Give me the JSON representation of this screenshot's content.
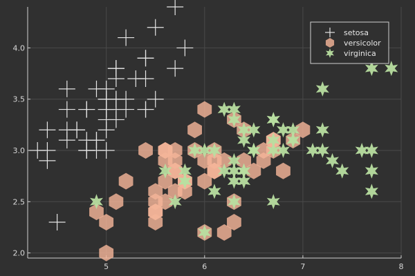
{
  "colors": {
    "background": "#303030",
    "grid": "#4a4a4a",
    "axis": "#d0d0d0",
    "setosa": "#e6e6e6",
    "versicolor": "#f4b599",
    "virginica": "#b8dea0"
  },
  "chart_data": {
    "type": "scatter",
    "title": "",
    "xlabel": "",
    "ylabel": "",
    "xlim": [
      4.2,
      8.0
    ],
    "ylim": [
      1.95,
      4.4
    ],
    "xticks": [
      "5",
      "6",
      "7",
      "8"
    ],
    "yticks": [
      "2.0",
      "2.5",
      "3.0",
      "3.5",
      "4.0"
    ],
    "grid": true,
    "legend_position": "top-right",
    "series": [
      {
        "name": "setosa",
        "marker": "cross",
        "points": [
          [
            5.1,
            3.5
          ],
          [
            4.9,
            3.0
          ],
          [
            4.7,
            3.2
          ],
          [
            4.6,
            3.1
          ],
          [
            5.0,
            3.6
          ],
          [
            5.4,
            3.9
          ],
          [
            4.6,
            3.4
          ],
          [
            5.0,
            3.4
          ],
          [
            4.4,
            2.9
          ],
          [
            4.9,
            3.1
          ],
          [
            5.4,
            3.7
          ],
          [
            4.8,
            3.4
          ],
          [
            4.8,
            3.0
          ],
          [
            4.3,
            3.0
          ],
          [
            5.8,
            4.0
          ],
          [
            5.7,
            4.4
          ],
          [
            5.4,
            3.9
          ],
          [
            5.1,
            3.5
          ],
          [
            5.7,
            3.8
          ],
          [
            5.1,
            3.8
          ],
          [
            5.4,
            3.4
          ],
          [
            5.1,
            3.7
          ],
          [
            4.6,
            3.6
          ],
          [
            5.1,
            3.3
          ],
          [
            4.8,
            3.4
          ],
          [
            5.0,
            3.0
          ],
          [
            5.0,
            3.4
          ],
          [
            5.2,
            3.5
          ],
          [
            5.2,
            3.4
          ],
          [
            4.7,
            3.2
          ],
          [
            4.8,
            3.1
          ],
          [
            5.4,
            3.4
          ],
          [
            5.2,
            4.1
          ],
          [
            5.5,
            4.2
          ],
          [
            4.9,
            3.1
          ],
          [
            5.0,
            3.2
          ],
          [
            5.5,
            3.5
          ],
          [
            4.9,
            3.6
          ],
          [
            4.4,
            3.0
          ],
          [
            5.1,
            3.4
          ],
          [
            5.0,
            3.5
          ],
          [
            4.5,
            2.3
          ],
          [
            4.4,
            3.2
          ],
          [
            5.0,
            3.5
          ],
          [
            5.1,
            3.8
          ],
          [
            4.8,
            3.0
          ],
          [
            5.1,
            3.8
          ],
          [
            4.6,
            3.2
          ],
          [
            5.3,
            3.7
          ],
          [
            5.0,
            3.3
          ]
        ]
      },
      {
        "name": "versicolor",
        "marker": "hexagon",
        "points": [
          [
            7.0,
            3.2
          ],
          [
            6.4,
            3.2
          ],
          [
            6.9,
            3.1
          ],
          [
            5.5,
            2.3
          ],
          [
            6.5,
            2.8
          ],
          [
            5.7,
            2.8
          ],
          [
            6.3,
            3.3
          ],
          [
            4.9,
            2.4
          ],
          [
            6.6,
            2.9
          ],
          [
            5.2,
            2.7
          ],
          [
            5.0,
            2.0
          ],
          [
            5.9,
            3.0
          ],
          [
            6.0,
            2.2
          ],
          [
            6.1,
            2.9
          ],
          [
            5.6,
            2.9
          ],
          [
            6.7,
            3.1
          ],
          [
            5.6,
            3.0
          ],
          [
            5.8,
            2.7
          ],
          [
            6.2,
            2.2
          ],
          [
            5.6,
            2.5
          ],
          [
            5.9,
            3.2
          ],
          [
            6.1,
            2.8
          ],
          [
            6.3,
            2.5
          ],
          [
            6.1,
            2.8
          ],
          [
            6.4,
            2.9
          ],
          [
            6.6,
            3.0
          ],
          [
            6.8,
            2.8
          ],
          [
            6.7,
            3.0
          ],
          [
            6.0,
            2.9
          ],
          [
            5.7,
            2.6
          ],
          [
            5.5,
            2.4
          ],
          [
            5.5,
            2.4
          ],
          [
            5.8,
            2.7
          ],
          [
            6.0,
            2.7
          ],
          [
            5.4,
            3.0
          ],
          [
            6.0,
            3.4
          ],
          [
            6.7,
            3.1
          ],
          [
            6.3,
            2.3
          ],
          [
            5.6,
            3.0
          ],
          [
            5.5,
            2.5
          ],
          [
            5.5,
            2.6
          ],
          [
            6.1,
            3.0
          ],
          [
            5.8,
            2.6
          ],
          [
            5.0,
            2.3
          ],
          [
            5.6,
            2.7
          ],
          [
            5.7,
            3.0
          ],
          [
            5.7,
            2.9
          ],
          [
            6.2,
            2.9
          ],
          [
            5.1,
            2.5
          ],
          [
            5.7,
            2.8
          ]
        ]
      },
      {
        "name": "virginica",
        "marker": "star",
        "points": [
          [
            6.3,
            3.3
          ],
          [
            5.8,
            2.7
          ],
          [
            7.1,
            3.0
          ],
          [
            6.3,
            2.9
          ],
          [
            6.5,
            3.0
          ],
          [
            7.6,
            3.0
          ],
          [
            4.9,
            2.5
          ],
          [
            7.3,
            2.9
          ],
          [
            6.7,
            2.5
          ],
          [
            7.2,
            3.6
          ],
          [
            6.5,
            3.2
          ],
          [
            6.4,
            2.7
          ],
          [
            6.8,
            3.0
          ],
          [
            5.7,
            2.5
          ],
          [
            5.8,
            2.8
          ],
          [
            6.4,
            3.2
          ],
          [
            6.5,
            3.0
          ],
          [
            7.7,
            3.8
          ],
          [
            7.7,
            2.6
          ],
          [
            6.0,
            2.2
          ],
          [
            6.9,
            3.2
          ],
          [
            5.6,
            2.8
          ],
          [
            7.7,
            2.8
          ],
          [
            6.3,
            2.7
          ],
          [
            6.7,
            3.3
          ],
          [
            7.2,
            3.2
          ],
          [
            6.2,
            2.8
          ],
          [
            6.1,
            3.0
          ],
          [
            6.4,
            2.8
          ],
          [
            7.2,
            3.0
          ],
          [
            7.4,
            2.8
          ],
          [
            7.9,
            3.8
          ],
          [
            6.4,
            2.8
          ],
          [
            6.3,
            2.8
          ],
          [
            6.1,
            2.6
          ],
          [
            7.7,
            3.0
          ],
          [
            6.3,
            3.4
          ],
          [
            6.4,
            3.1
          ],
          [
            6.0,
            3.0
          ],
          [
            6.9,
            3.1
          ],
          [
            6.7,
            3.1
          ],
          [
            6.9,
            3.1
          ],
          [
            5.8,
            2.7
          ],
          [
            6.8,
            3.2
          ],
          [
            6.7,
            3.3
          ],
          [
            6.7,
            3.0
          ],
          [
            6.3,
            2.5
          ],
          [
            6.5,
            3.0
          ],
          [
            6.2,
            3.4
          ],
          [
            5.9,
            3.0
          ]
        ]
      }
    ]
  }
}
